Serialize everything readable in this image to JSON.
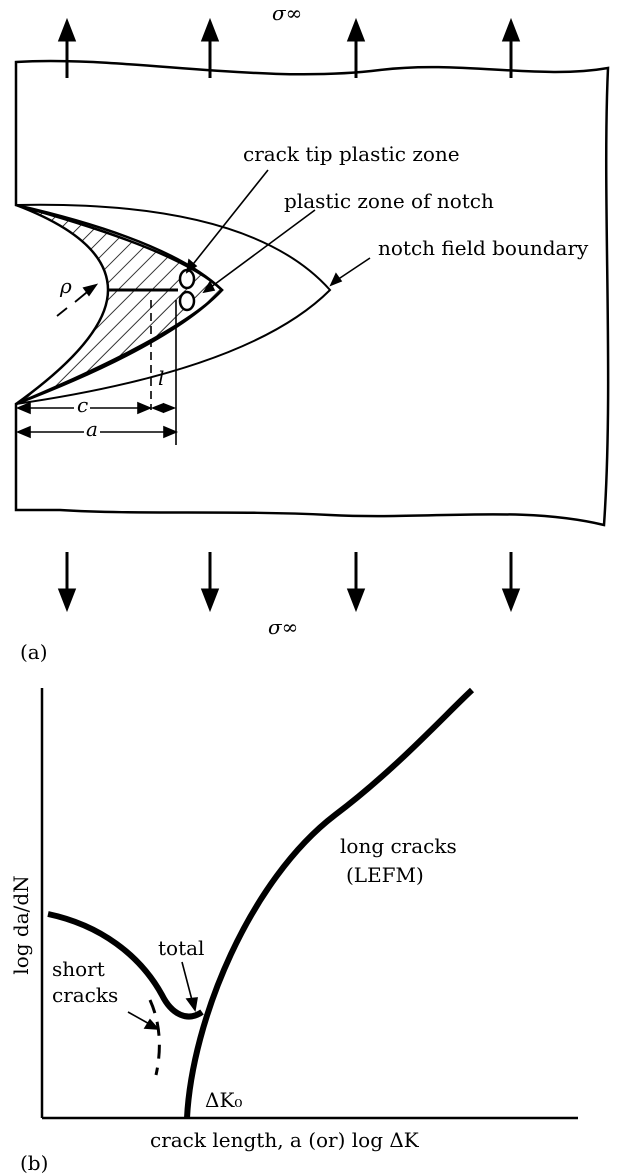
{
  "panel_a": {
    "panel_label": "(a)",
    "stress_top": "σ∞",
    "stress_bottom": "σ∞",
    "label_crack_tip_plastic_zone": "crack tip plastic zone",
    "label_plastic_zone_notch": "plastic zone of notch",
    "label_notch_field_boundary": "notch field boundary",
    "sym_rho": "ρ",
    "sym_c": "c",
    "sym_l": "l",
    "sym_a": "a"
  },
  "panel_b": {
    "panel_label": "(b)",
    "ylabel": "log da/dN",
    "xlabel": "crack length, a (or) log ΔK",
    "label_long_cracks_1": "long cracks",
    "label_long_cracks_2": "(LEFM)",
    "label_total": "total",
    "label_short_1": "short",
    "label_short_2": "cracks",
    "label_threshold": "ΔK₀"
  }
}
